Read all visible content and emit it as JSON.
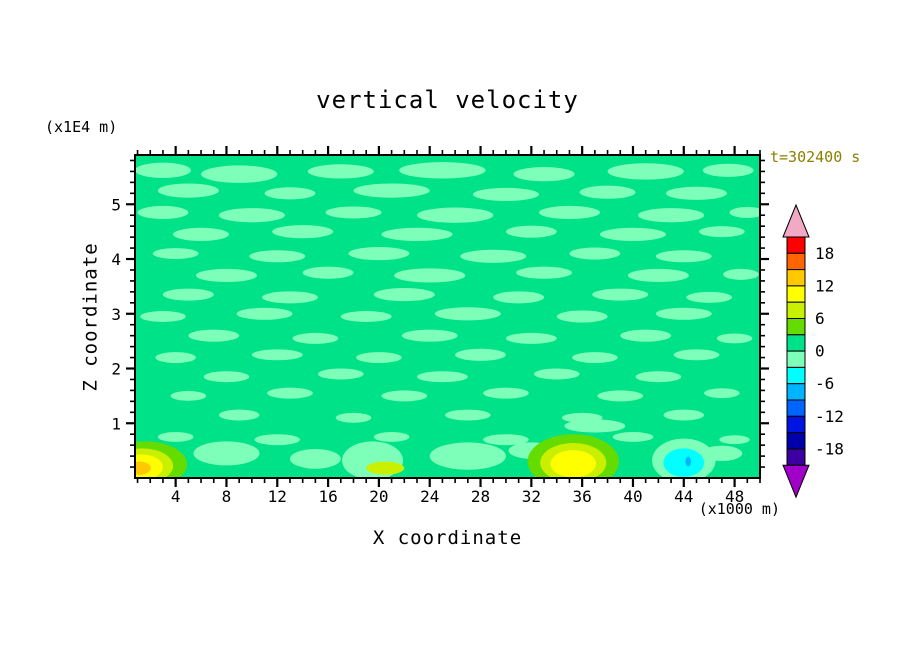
{
  "title": "vertical velocity",
  "time_label": "t=302400 s",
  "axes": {
    "x_label": "X coordinate",
    "x_unit": "(x1000 m)",
    "y_label": "Z coordinate",
    "y_unit": "(x1E4 m)"
  },
  "colors": {
    "frame": "#000000",
    "text": "#000000",
    "time_label": "#8b8000",
    "page_background": "#ffffff"
  },
  "chart_data": {
    "type": "heatmap",
    "title": "vertical velocity",
    "xlabel": "X coordinate",
    "ylabel": "Z coordinate",
    "x_unit_label": "(x1000 m)",
    "y_unit_label": "(x1E4 m)",
    "time_annotation": "t=302400 s",
    "xlim": [
      0.8,
      50
    ],
    "ylim": [
      0,
      5.9
    ],
    "x_ticks": [
      4,
      8,
      12,
      16,
      20,
      24,
      28,
      32,
      36,
      40,
      44,
      48
    ],
    "x_minor_step": 1,
    "y_ticks": [
      1,
      2,
      3,
      4,
      5
    ],
    "y_minor_step": 0.2,
    "grid": false,
    "background_value": 1,
    "streak_value": -1.5,
    "colorbar": {
      "position": "right",
      "labels": [
        18,
        12,
        6,
        0,
        -6,
        -12,
        -18
      ],
      "band_min": -21,
      "band_max": 21,
      "band_step": 3,
      "band_colors": [
        "#ff0000",
        "#ff6400",
        "#ffc800",
        "#ffff00",
        "#c8f000",
        "#64dc00",
        "#00e287",
        "#7dffba",
        "#00ffff",
        "#00b4ff",
        "#0064ff",
        "#0014e1",
        "#0000aa",
        "#3c00a0"
      ],
      "over_color": "#f2a9c4",
      "under_color": "#a000c8"
    },
    "streaks": [
      [
        3,
        5.62,
        2.2,
        0.14
      ],
      [
        9,
        5.55,
        3.0,
        0.16
      ],
      [
        17,
        5.6,
        2.6,
        0.13
      ],
      [
        25,
        5.62,
        3.4,
        0.15
      ],
      [
        33,
        5.55,
        2.4,
        0.13
      ],
      [
        41,
        5.6,
        3.0,
        0.15
      ],
      [
        47.5,
        5.62,
        2.0,
        0.12
      ],
      [
        5,
        5.25,
        2.4,
        0.13
      ],
      [
        13,
        5.2,
        2.0,
        0.11
      ],
      [
        21,
        5.25,
        3.0,
        0.13
      ],
      [
        30,
        5.18,
        2.6,
        0.12
      ],
      [
        38,
        5.22,
        2.2,
        0.12
      ],
      [
        45,
        5.2,
        2.4,
        0.12
      ],
      [
        3,
        4.85,
        2.0,
        0.12
      ],
      [
        10,
        4.8,
        2.6,
        0.13
      ],
      [
        18,
        4.85,
        2.2,
        0.11
      ],
      [
        26,
        4.8,
        3.0,
        0.14
      ],
      [
        35,
        4.85,
        2.4,
        0.12
      ],
      [
        43,
        4.8,
        2.6,
        0.13
      ],
      [
        49,
        4.85,
        1.4,
        0.1
      ],
      [
        6,
        4.45,
        2.2,
        0.12
      ],
      [
        14,
        4.5,
        2.4,
        0.12
      ],
      [
        23,
        4.45,
        2.8,
        0.12
      ],
      [
        32,
        4.5,
        2.0,
        0.11
      ],
      [
        40,
        4.45,
        2.6,
        0.12
      ],
      [
        47,
        4.5,
        1.8,
        0.1
      ],
      [
        4,
        4.1,
        1.8,
        0.1
      ],
      [
        12,
        4.05,
        2.2,
        0.11
      ],
      [
        20,
        4.1,
        2.4,
        0.12
      ],
      [
        29,
        4.05,
        2.6,
        0.12
      ],
      [
        37,
        4.1,
        2.0,
        0.11
      ],
      [
        44,
        4.05,
        2.2,
        0.11
      ],
      [
        8,
        3.7,
        2.4,
        0.12
      ],
      [
        16,
        3.75,
        2.0,
        0.11
      ],
      [
        24,
        3.7,
        2.8,
        0.13
      ],
      [
        33,
        3.75,
        2.2,
        0.11
      ],
      [
        42,
        3.7,
        2.4,
        0.12
      ],
      [
        48.5,
        3.72,
        1.4,
        0.1
      ],
      [
        5,
        3.35,
        2.0,
        0.11
      ],
      [
        13,
        3.3,
        2.2,
        0.11
      ],
      [
        22,
        3.35,
        2.4,
        0.12
      ],
      [
        31,
        3.3,
        2.0,
        0.11
      ],
      [
        39,
        3.35,
        2.2,
        0.11
      ],
      [
        46,
        3.3,
        1.8,
        0.1
      ],
      [
        3,
        2.95,
        1.8,
        0.1
      ],
      [
        11,
        3.0,
        2.2,
        0.11
      ],
      [
        19,
        2.95,
        2.0,
        0.1
      ],
      [
        27,
        3.0,
        2.6,
        0.12
      ],
      [
        36,
        2.95,
        2.0,
        0.11
      ],
      [
        44,
        3.0,
        2.2,
        0.11
      ],
      [
        7,
        2.6,
        2.0,
        0.11
      ],
      [
        15,
        2.55,
        1.8,
        0.1
      ],
      [
        24,
        2.6,
        2.2,
        0.11
      ],
      [
        32,
        2.55,
        2.0,
        0.1
      ],
      [
        41,
        2.6,
        2.0,
        0.11
      ],
      [
        48,
        2.55,
        1.4,
        0.09
      ],
      [
        4,
        2.2,
        1.6,
        0.1
      ],
      [
        12,
        2.25,
        2.0,
        0.1
      ],
      [
        20,
        2.2,
        1.8,
        0.1
      ],
      [
        28,
        2.25,
        2.0,
        0.11
      ],
      [
        37,
        2.2,
        1.8,
        0.1
      ],
      [
        45,
        2.25,
        1.8,
        0.1
      ],
      [
        8,
        1.85,
        1.8,
        0.1
      ],
      [
        17,
        1.9,
        1.8,
        0.1
      ],
      [
        25,
        1.85,
        2.0,
        0.1
      ],
      [
        34,
        1.9,
        1.8,
        0.1
      ],
      [
        42,
        1.85,
        1.8,
        0.1
      ],
      [
        5,
        1.5,
        1.4,
        0.09
      ],
      [
        13,
        1.55,
        1.8,
        0.1
      ],
      [
        22,
        1.5,
        1.8,
        0.1
      ],
      [
        30,
        1.55,
        1.8,
        0.1
      ],
      [
        39,
        1.5,
        1.8,
        0.1
      ],
      [
        47,
        1.55,
        1.4,
        0.09
      ],
      [
        9,
        1.15,
        1.6,
        0.1
      ],
      [
        18,
        1.1,
        1.4,
        0.09
      ],
      [
        27,
        1.15,
        1.8,
        0.1
      ],
      [
        36,
        1.1,
        1.6,
        0.09
      ],
      [
        44,
        1.15,
        1.6,
        0.1
      ],
      [
        37,
        0.95,
        2.4,
        0.12
      ],
      [
        4,
        0.75,
        1.4,
        0.09
      ],
      [
        12,
        0.7,
        1.8,
        0.1
      ],
      [
        21,
        0.75,
        1.4,
        0.09
      ],
      [
        30,
        0.7,
        1.8,
        0.1
      ],
      [
        40,
        0.75,
        1.6,
        0.09
      ],
      [
        48,
        0.7,
        1.2,
        0.08
      ],
      [
        8,
        0.45,
        2.6,
        0.22
      ],
      [
        15,
        0.35,
        2.0,
        0.18
      ],
      [
        27,
        0.4,
        3.0,
        0.25
      ],
      [
        32,
        0.5,
        1.8,
        0.15
      ],
      [
        47,
        0.45,
        1.6,
        0.14
      ],
      [
        19.5,
        0.32,
        2.4,
        0.35
      ],
      [
        20.3,
        0.3,
        1.5,
        0.25
      ]
    ],
    "features": [
      [
        1.6,
        0.25,
        3.3,
        0.42,
        4.5
      ],
      [
        1.4,
        0.22,
        2.4,
        0.32,
        7
      ],
      [
        1.3,
        0.2,
        1.7,
        0.23,
        10
      ],
      [
        1.2,
        0.18,
        0.85,
        0.12,
        13
      ],
      [
        35.3,
        0.3,
        3.6,
        0.5,
        4.5
      ],
      [
        35.3,
        0.28,
        2.6,
        0.36,
        7
      ],
      [
        35.3,
        0.26,
        1.8,
        0.25,
        10
      ],
      [
        20.5,
        0.18,
        1.5,
        0.12,
        7
      ],
      [
        44,
        0.32,
        2.5,
        0.4,
        -1.5
      ],
      [
        44,
        0.28,
        1.6,
        0.26,
        -4.5
      ],
      [
        44.35,
        0.3,
        0.22,
        0.09,
        -8
      ]
    ]
  }
}
